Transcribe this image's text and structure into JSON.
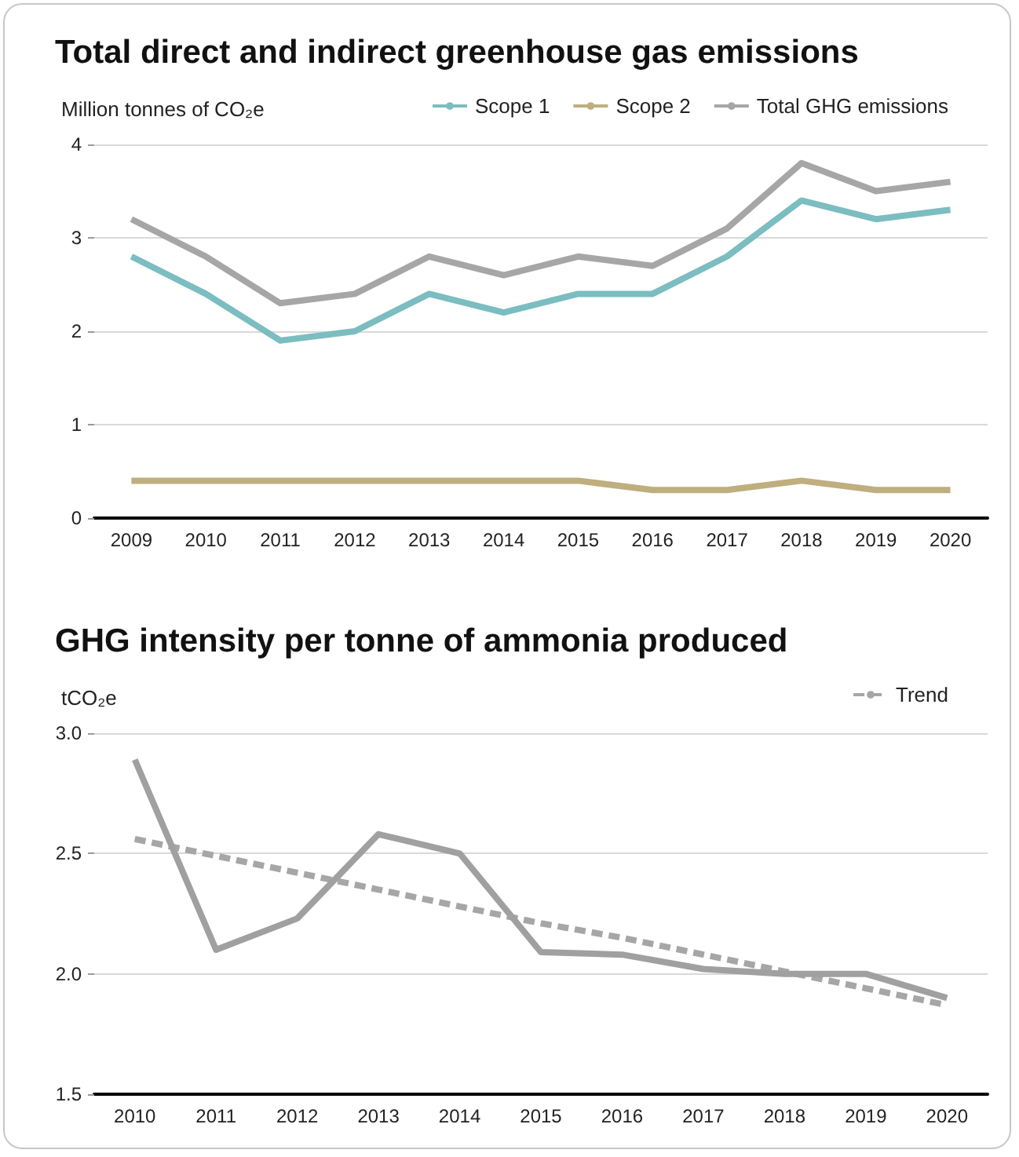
{
  "chart_data": [
    {
      "type": "line",
      "title": "Total direct and indirect greenhouse gas emissions",
      "ylabel": "Million tonnes of CO₂e",
      "categories": [
        "2009",
        "2010",
        "2011",
        "2012",
        "2013",
        "2014",
        "2015",
        "2016",
        "2017",
        "2018",
        "2019",
        "2020"
      ],
      "series": [
        {
          "name": "Scope 1",
          "color": "#7bbdc0",
          "values": [
            2.8,
            2.4,
            1.9,
            2.0,
            2.4,
            2.2,
            2.4,
            2.4,
            2.8,
            3.4,
            3.2,
            3.3
          ]
        },
        {
          "name": "Scope 2",
          "color": "#bfae7e",
          "values": [
            0.4,
            0.4,
            0.4,
            0.4,
            0.4,
            0.4,
            0.4,
            0.3,
            0.3,
            0.4,
            0.3,
            0.3
          ]
        },
        {
          "name": "Total GHG emissions",
          "color": "#a6a6a6",
          "values": [
            3.2,
            2.8,
            2.3,
            2.4,
            2.8,
            2.6,
            2.8,
            2.7,
            3.1,
            3.8,
            3.5,
            3.6
          ]
        }
      ],
      "ylim": [
        0,
        4
      ],
      "yticks": [
        0,
        1,
        2,
        3,
        4
      ],
      "grid": "y",
      "legend": "top right",
      "marker": "none",
      "line_style": "solid"
    },
    {
      "type": "line",
      "title": "GHG intensity per tonne of ammonia produced",
      "ylabel": "tCO₂e",
      "categories": [
        "2010",
        "2011",
        "2012",
        "2013",
        "2014",
        "2015",
        "2016",
        "2017",
        "2018",
        "2019",
        "2020"
      ],
      "series": [
        {
          "color": "#a0a0a0",
          "values": [
            2.89,
            2.1,
            2.23,
            2.58,
            2.5,
            2.09,
            2.08,
            2.02,
            2.0,
            2.0,
            1.9
          ]
        },
        {
          "name": "Trend",
          "color": "#a6a6a6",
          "line_style": "dashed",
          "values": [
            2.56,
            2.49,
            2.42,
            2.35,
            2.28,
            2.21,
            2.15,
            2.08,
            2.01,
            1.94,
            1.87
          ]
        }
      ],
      "ylim": [
        1.5,
        3.0
      ],
      "yticks": [
        {
          "value": 1.5,
          "label": "1.5"
        },
        {
          "value": 2,
          "label": "2.0"
        },
        {
          "value": 2.5,
          "label": "2.5"
        },
        {
          "value": 3,
          "label": "3.0"
        }
      ],
      "grid": "y",
      "legend": "top right",
      "marker": "none",
      "line_style": "solid"
    }
  ]
}
